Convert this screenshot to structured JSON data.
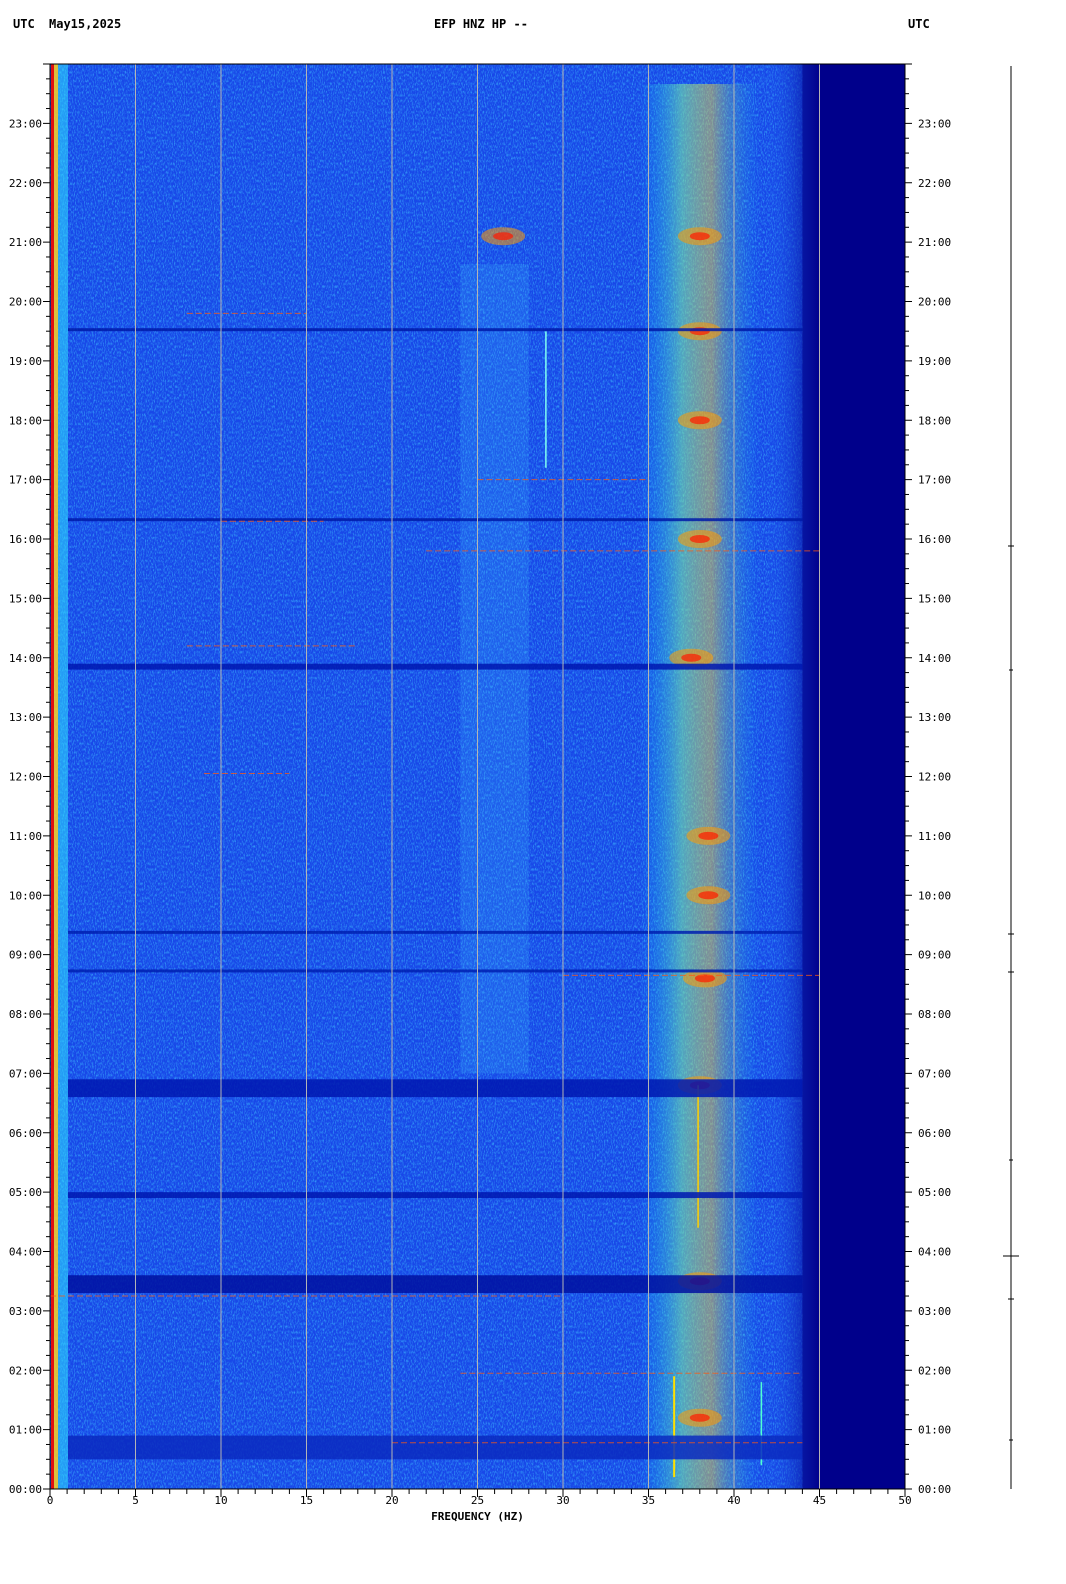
{
  "header": {
    "left_utc": "UTC",
    "date": "May15,2025",
    "station": "EFP HNZ HP --",
    "right_utc": "UTC"
  },
  "chart_data": {
    "type": "heatmap",
    "title": "EFP HNZ HP --",
    "date": "May15,2025",
    "xlabel": "FREQUENCY (HZ)",
    "ylabel": "UTC",
    "xlim": [
      0,
      50
    ],
    "x_ticks": [
      0,
      5,
      10,
      15,
      20,
      25,
      30,
      35,
      40,
      45,
      50
    ],
    "y_ticks": [
      "00:00",
      "01:00",
      "02:00",
      "03:00",
      "04:00",
      "05:00",
      "06:00",
      "07:00",
      "08:00",
      "09:00",
      "10:00",
      "11:00",
      "12:00",
      "13:00",
      "14:00",
      "15:00",
      "16:00",
      "17:00",
      "18:00",
      "19:00",
      "20:00",
      "21:00",
      "22:00",
      "23:00"
    ],
    "ylim_hours": [
      0,
      24
    ],
    "grid": true,
    "colormap": [
      "#00008b",
      "#0000ff",
      "#1e78ff",
      "#00e0ff",
      "#ffff00",
      "#ff0000"
    ],
    "features": [
      {
        "label": "high-energy band",
        "x_range_hz": [
          35,
          41
        ]
      },
      {
        "label": "low-frequency edge",
        "x_range_hz": [
          0,
          1
        ]
      },
      {
        "label": "rolloff",
        "x_range_hz": [
          43,
          45
        ]
      }
    ]
  },
  "colors": {
    "background": "#00008b",
    "base": "#1848e8",
    "grid": "#b4b4b4"
  }
}
